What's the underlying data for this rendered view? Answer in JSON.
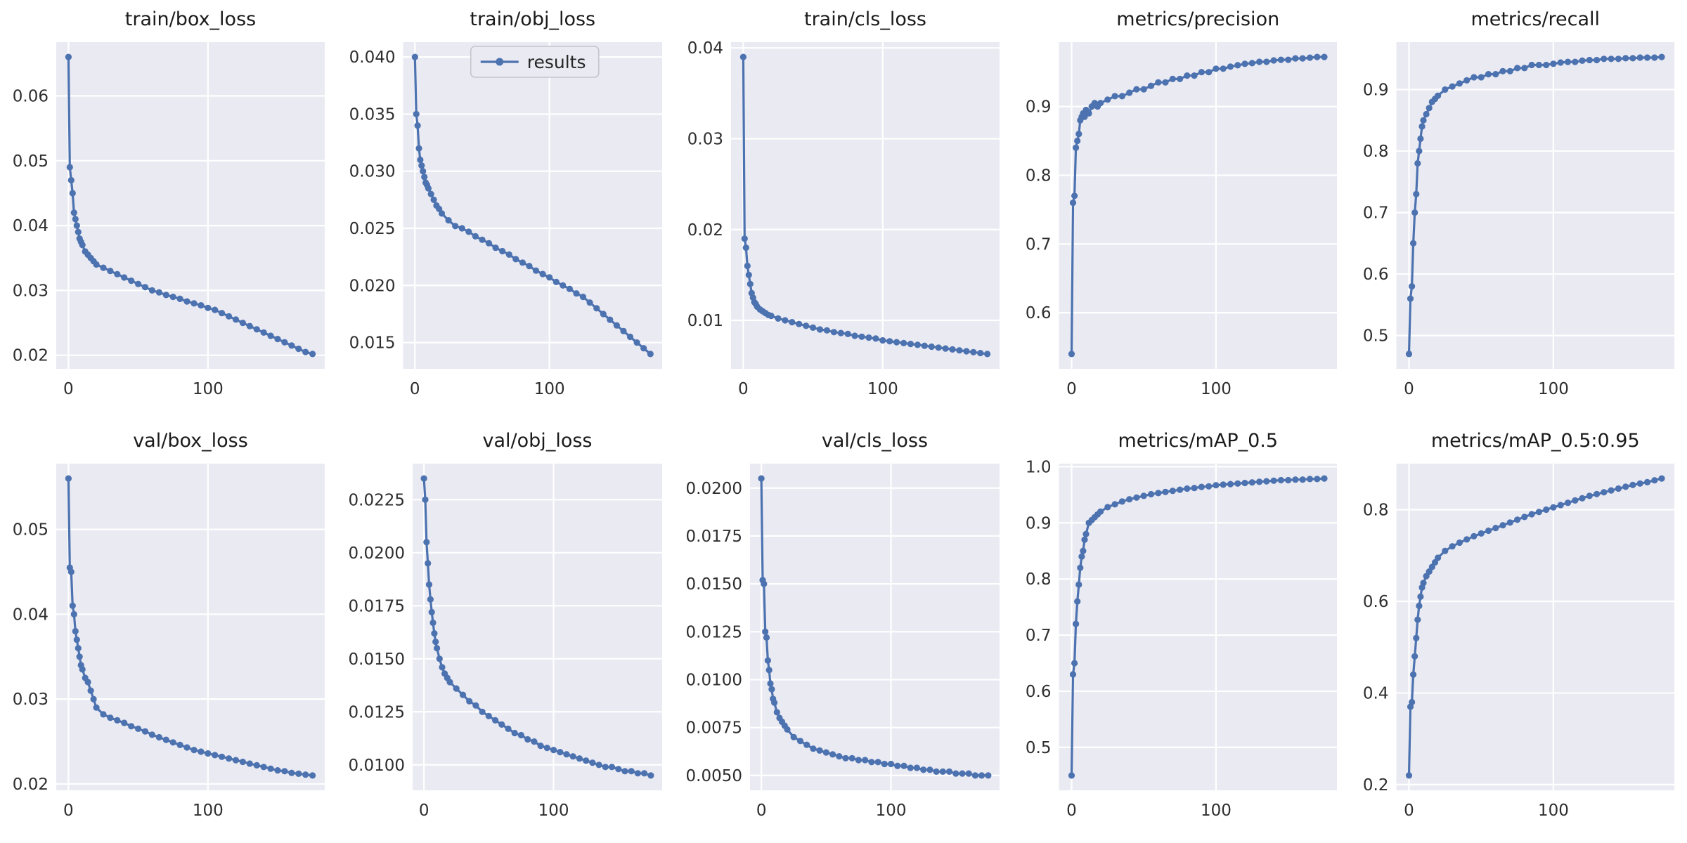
{
  "style": {
    "figure_bg": "#ffffff",
    "axes_bg": "#eaeaf2",
    "grid_color": "#ffffff",
    "line_color": "#4c72b0",
    "text_color": "#2e2e2e",
    "legend_bg": "#eaeaf2",
    "legend_border": "#c5c5cc"
  },
  "chart_data": {
    "type": "line",
    "layout": "2x5 grid, seaborn style, shared x axis (training epochs 0-175)",
    "x": [
      0,
      1,
      2,
      3,
      4,
      5,
      6,
      7,
      8,
      9,
      10,
      12,
      14,
      16,
      18,
      20,
      25,
      30,
      35,
      40,
      45,
      50,
      55,
      60,
      65,
      70,
      75,
      80,
      85,
      90,
      95,
      100,
      105,
      110,
      115,
      120,
      125,
      130,
      135,
      140,
      145,
      150,
      155,
      160,
      165,
      170,
      175
    ],
    "xticks": [
      0,
      100
    ],
    "xtick_labels": [
      "0",
      "100"
    ],
    "subplots": [
      {
        "title": "train/box_loss",
        "yticks": [
          0.02,
          0.03,
          0.04,
          0.05,
          0.06
        ],
        "ytick_labels": [
          "0.02",
          "0.03",
          "0.04",
          "0.05",
          "0.06"
        ],
        "values": [
          0.066,
          0.049,
          0.047,
          0.045,
          0.042,
          0.041,
          0.04,
          0.039,
          0.038,
          0.0375,
          0.037,
          0.036,
          0.0355,
          0.035,
          0.0345,
          0.034,
          0.0335,
          0.033,
          0.0325,
          0.032,
          0.0315,
          0.031,
          0.0305,
          0.03,
          0.0297,
          0.0293,
          0.029,
          0.0287,
          0.0283,
          0.028,
          0.0277,
          0.0273,
          0.027,
          0.0265,
          0.026,
          0.0255,
          0.025,
          0.0245,
          0.024,
          0.0235,
          0.023,
          0.0225,
          0.022,
          0.0215,
          0.021,
          0.0205,
          0.0202
        ]
      },
      {
        "title": "train/obj_loss",
        "legend_label": "results",
        "yticks": [
          0.015,
          0.02,
          0.025,
          0.03,
          0.035,
          0.04
        ],
        "ytick_labels": [
          "0.015",
          "0.020",
          "0.025",
          "0.030",
          "0.035",
          "0.040"
        ],
        "values": [
          0.04,
          0.035,
          0.034,
          0.032,
          0.031,
          0.0305,
          0.03,
          0.0295,
          0.029,
          0.0288,
          0.0285,
          0.028,
          0.0275,
          0.027,
          0.0267,
          0.0263,
          0.0257,
          0.0252,
          0.025,
          0.0247,
          0.0243,
          0.024,
          0.0237,
          0.0233,
          0.023,
          0.0227,
          0.0223,
          0.022,
          0.0217,
          0.0213,
          0.021,
          0.0207,
          0.0203,
          0.02,
          0.0197,
          0.0193,
          0.019,
          0.0185,
          0.018,
          0.0175,
          0.017,
          0.0165,
          0.016,
          0.0155,
          0.015,
          0.0145,
          0.014
        ]
      },
      {
        "title": "train/cls_loss",
        "yticks": [
          0.01,
          0.02,
          0.03,
          0.04
        ],
        "ytick_labels": [
          "0.01",
          "0.02",
          "0.03",
          "0.04"
        ],
        "values": [
          0.039,
          0.019,
          0.018,
          0.016,
          0.015,
          0.014,
          0.013,
          0.0125,
          0.012,
          0.0118,
          0.0115,
          0.0112,
          0.011,
          0.0108,
          0.0106,
          0.0105,
          0.0102,
          0.01,
          0.0098,
          0.0096,
          0.0094,
          0.0092,
          0.009,
          0.0089,
          0.0087,
          0.0086,
          0.0085,
          0.0083,
          0.0082,
          0.0081,
          0.008,
          0.0078,
          0.0077,
          0.0076,
          0.0075,
          0.0074,
          0.0073,
          0.0072,
          0.0071,
          0.007,
          0.0069,
          0.0068,
          0.0067,
          0.0066,
          0.0065,
          0.0064,
          0.0063
        ]
      },
      {
        "title": "metrics/precision",
        "yticks": [
          0.6,
          0.7,
          0.8,
          0.9
        ],
        "ytick_labels": [
          "0.6",
          "0.7",
          "0.8",
          "0.9"
        ],
        "values": [
          0.54,
          0.76,
          0.77,
          0.84,
          0.85,
          0.86,
          0.88,
          0.885,
          0.89,
          0.885,
          0.895,
          0.89,
          0.9,
          0.905,
          0.9,
          0.905,
          0.91,
          0.915,
          0.915,
          0.92,
          0.925,
          0.925,
          0.93,
          0.935,
          0.935,
          0.94,
          0.94,
          0.945,
          0.945,
          0.95,
          0.95,
          0.955,
          0.955,
          0.958,
          0.96,
          0.962,
          0.963,
          0.965,
          0.965,
          0.967,
          0.968,
          0.968,
          0.97,
          0.97,
          0.971,
          0.972,
          0.972
        ]
      },
      {
        "title": "metrics/recall",
        "yticks": [
          0.5,
          0.6,
          0.7,
          0.8,
          0.9
        ],
        "ytick_labels": [
          "0.5",
          "0.6",
          "0.7",
          "0.8",
          "0.9"
        ],
        "values": [
          0.47,
          0.56,
          0.58,
          0.65,
          0.7,
          0.73,
          0.78,
          0.8,
          0.82,
          0.84,
          0.85,
          0.86,
          0.87,
          0.88,
          0.885,
          0.89,
          0.9,
          0.905,
          0.91,
          0.915,
          0.92,
          0.92,
          0.925,
          0.925,
          0.93,
          0.93,
          0.935,
          0.935,
          0.94,
          0.94,
          0.94,
          0.942,
          0.944,
          0.945,
          0.945,
          0.947,
          0.948,
          0.948,
          0.95,
          0.95,
          0.95,
          0.951,
          0.951,
          0.952,
          0.952,
          0.952,
          0.953
        ]
      },
      {
        "title": "val/box_loss",
        "yticks": [
          0.02,
          0.03,
          0.04,
          0.05
        ],
        "ytick_labels": [
          "0.02",
          "0.03",
          "0.04",
          "0.05"
        ],
        "values": [
          0.056,
          0.0455,
          0.045,
          0.041,
          0.04,
          0.038,
          0.037,
          0.036,
          0.035,
          0.034,
          0.0335,
          0.0325,
          0.032,
          0.031,
          0.03,
          0.029,
          0.0282,
          0.0278,
          0.0275,
          0.0272,
          0.0268,
          0.0265,
          0.0262,
          0.0258,
          0.0255,
          0.0252,
          0.0249,
          0.0246,
          0.0243,
          0.024,
          0.0238,
          0.0236,
          0.0234,
          0.0232,
          0.023,
          0.0228,
          0.0226,
          0.0224,
          0.0222,
          0.022,
          0.0218,
          0.0216,
          0.0215,
          0.0213,
          0.0212,
          0.0211,
          0.021
        ]
      },
      {
        "title": "val/obj_loss",
        "yticks": [
          0.01,
          0.0125,
          0.015,
          0.0175,
          0.02,
          0.0225
        ],
        "ytick_labels": [
          "0.0100",
          "0.0125",
          "0.0150",
          "0.0175",
          "0.0200",
          "0.0225"
        ],
        "values": [
          0.0235,
          0.0225,
          0.0205,
          0.0195,
          0.0185,
          0.0178,
          0.0172,
          0.0167,
          0.0162,
          0.0158,
          0.0155,
          0.015,
          0.0146,
          0.0143,
          0.0141,
          0.0139,
          0.0136,
          0.0133,
          0.013,
          0.0128,
          0.0125,
          0.0123,
          0.0121,
          0.0119,
          0.0117,
          0.0115,
          0.0114,
          0.0112,
          0.0111,
          0.0109,
          0.0108,
          0.0107,
          0.0106,
          0.0105,
          0.0104,
          0.0103,
          0.0102,
          0.0101,
          0.01,
          0.0099,
          0.0099,
          0.0098,
          0.0097,
          0.0097,
          0.0096,
          0.0096,
          0.0095
        ]
      },
      {
        "title": "val/cls_loss",
        "yticks": [
          0.005,
          0.0075,
          0.01,
          0.0125,
          0.015,
          0.0175,
          0.02
        ],
        "ytick_labels": [
          "0.0050",
          "0.0075",
          "0.0100",
          "0.0125",
          "0.0150",
          "0.0175",
          "0.0200"
        ],
        "values": [
          0.0205,
          0.0152,
          0.015,
          0.0125,
          0.0122,
          0.011,
          0.0105,
          0.0098,
          0.0095,
          0.009,
          0.0088,
          0.0083,
          0.008,
          0.0078,
          0.0076,
          0.0074,
          0.007,
          0.0068,
          0.0066,
          0.0064,
          0.0063,
          0.0062,
          0.0061,
          0.006,
          0.0059,
          0.0059,
          0.0058,
          0.0058,
          0.0057,
          0.0057,
          0.0056,
          0.0056,
          0.0055,
          0.0055,
          0.0054,
          0.0054,
          0.0053,
          0.0053,
          0.0052,
          0.0052,
          0.0052,
          0.0051,
          0.0051,
          0.0051,
          0.005,
          0.005,
          0.005
        ]
      },
      {
        "title": "metrics/mAP_0.5",
        "yticks": [
          0.5,
          0.6,
          0.7,
          0.8,
          0.9,
          1.0
        ],
        "ytick_labels": [
          "0.5",
          "0.6",
          "0.7",
          "0.8",
          "0.9",
          "1.0"
        ],
        "values": [
          0.45,
          0.63,
          0.65,
          0.72,
          0.76,
          0.79,
          0.82,
          0.84,
          0.85,
          0.87,
          0.88,
          0.9,
          0.905,
          0.91,
          0.915,
          0.92,
          0.928,
          0.933,
          0.938,
          0.942,
          0.945,
          0.948,
          0.951,
          0.953,
          0.955,
          0.957,
          0.959,
          0.961,
          0.962,
          0.964,
          0.965,
          0.967,
          0.968,
          0.969,
          0.97,
          0.971,
          0.972,
          0.973,
          0.974,
          0.975,
          0.976,
          0.976,
          0.977,
          0.977,
          0.978,
          0.978,
          0.979
        ]
      },
      {
        "title": "metrics/mAP_0.5:0.95",
        "yticks": [
          0.2,
          0.4,
          0.6,
          0.8
        ],
        "ytick_labels": [
          "0.2",
          "0.4",
          "0.6",
          "0.8"
        ],
        "values": [
          0.22,
          0.37,
          0.38,
          0.44,
          0.48,
          0.52,
          0.56,
          0.59,
          0.61,
          0.63,
          0.64,
          0.655,
          0.665,
          0.675,
          0.685,
          0.695,
          0.71,
          0.72,
          0.728,
          0.735,
          0.742,
          0.748,
          0.754,
          0.76,
          0.766,
          0.772,
          0.778,
          0.784,
          0.79,
          0.795,
          0.8,
          0.805,
          0.81,
          0.815,
          0.82,
          0.825,
          0.83,
          0.834,
          0.838,
          0.842,
          0.846,
          0.85,
          0.854,
          0.857,
          0.86,
          0.864,
          0.868
        ]
      }
    ]
  }
}
